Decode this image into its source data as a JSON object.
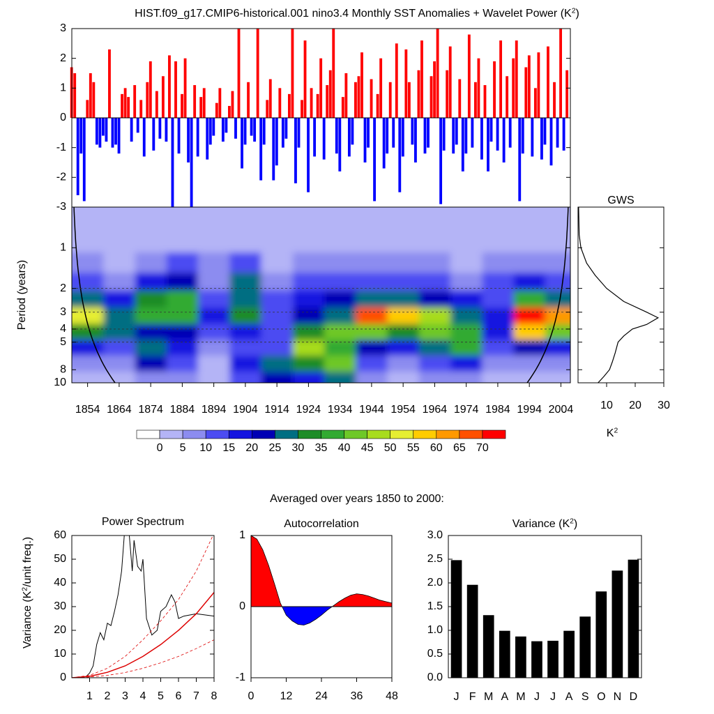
{
  "chart_data": [
    {
      "type": "bar",
      "title": [
        "HIST.f09_g17.CMIP6-historical.001 nino3.4 Monthly SST Anomalies + Wavelet Power (K",
        "2",
        ")"
      ],
      "x": [
        1849,
        1850,
        1851,
        1852,
        1853,
        1854,
        1855,
        1856,
        1857,
        1858,
        1859,
        1860,
        1861,
        1862,
        1863,
        1864,
        1865,
        1866,
        1867,
        1868,
        1869,
        1870,
        1871,
        1872,
        1873,
        1874,
        1875,
        1876,
        1877,
        1878,
        1879,
        1880,
        1881,
        1882,
        1883,
        1884,
        1885,
        1886,
        1887,
        1888,
        1889,
        1890,
        1891,
        1892,
        1893,
        1894,
        1895,
        1896,
        1897,
        1898,
        1899,
        1900,
        1901,
        1902,
        1903,
        1904,
        1905,
        1906,
        1907,
        1908,
        1909,
        1910,
        1911,
        1912,
        1913,
        1914,
        1915,
        1916,
        1917,
        1918,
        1919,
        1920,
        1921,
        1922,
        1923,
        1924,
        1925,
        1926,
        1927,
        1928,
        1929,
        1930,
        1931,
        1932,
        1933,
        1934,
        1935,
        1936,
        1937,
        1938,
        1939,
        1940,
        1941,
        1942,
        1943,
        1944,
        1945,
        1946,
        1947,
        1948,
        1949,
        1950,
        1951,
        1952,
        1953,
        1954,
        1955,
        1956,
        1957,
        1958,
        1959,
        1960,
        1961,
        1962,
        1963,
        1964,
        1965,
        1966,
        1967,
        1968,
        1969,
        1970,
        1971,
        1972,
        1973,
        1974,
        1975,
        1976,
        1977,
        1978,
        1979,
        1980,
        1981,
        1982,
        1983,
        1984,
        1985,
        1986,
        1987,
        1988,
        1989,
        1990,
        1991,
        1992,
        1993,
        1994,
        1995,
        1996,
        1997,
        1998,
        1999,
        2000,
        2001,
        2002,
        2003,
        2004,
        2005,
        2006
      ],
      "values": [
        1.7,
        1.5,
        -2.6,
        -1.2,
        -2.8,
        0.6,
        1.5,
        1.2,
        -0.9,
        -1.0,
        -0.6,
        -0.8,
        2.3,
        -1.0,
        -0.9,
        -1.2,
        0.8,
        1.0,
        0.7,
        -0.8,
        1.1,
        -0.5,
        0.6,
        -1.3,
        1.2,
        1.9,
        -1.1,
        0.9,
        -0.7,
        1.4,
        -0.8,
        2.1,
        -3.0,
        1.9,
        -1.2,
        0.8,
        2.0,
        -1.5,
        -3.0,
        1.1,
        -1.3,
        0.7,
        1.0,
        -1.4,
        -0.9,
        -0.6,
        0.5,
        1.0,
        -0.8,
        -0.5,
        0.4,
        0.9,
        -0.7,
        3.0,
        -1.7,
        -0.9,
        1.2,
        -0.6,
        -0.8,
        3.0,
        -2.1,
        -0.9,
        0.6,
        1.3,
        -2.1,
        -1.6,
        1.0,
        -1.0,
        -0.7,
        0.8,
        3.0,
        -2.2,
        -1.0,
        0.6,
        2.6,
        -2.5,
        1.0,
        -1.3,
        0.8,
        2.0,
        -1.4,
        1.1,
        1.6,
        3.0,
        -1.2,
        -1.8,
        0.7,
        1.5,
        -1.3,
        -0.9,
        1.2,
        1.4,
        2.2,
        -1.5,
        -1.0,
        1.3,
        -2.8,
        0.8,
        2.0,
        -1.7,
        -1.2,
        1.2,
        -1.0,
        2.5,
        -2.5,
        -1.3,
        2.3,
        1.2,
        -0.9,
        -1.5,
        1.6,
        2.6,
        -1.2,
        -1.0,
        1.4,
        1.9,
        3.0,
        -2.9,
        -1.1,
        1.6,
        2.4,
        -1.2,
        -0.9,
        1.3,
        -1.8,
        -1.2,
        2.8,
        -1.0,
        1.2,
        2.0,
        -1.4,
        1.1,
        -1.8,
        -0.8,
        1.9,
        -1.1,
        2.6,
        -1.5,
        1.4,
        -1.0,
        2.0,
        2.6,
        -2.8,
        -1.2,
        1.7,
        2.1,
        -1.3,
        1.0,
        2.2,
        -1.4,
        -0.9,
        2.4,
        -1.6,
        1.2,
        -1.0,
        3.0,
        -1.1,
        1.6
      ],
      "pos_color": "#ff0000",
      "neg_color": "#0000ff",
      "xlim": [
        1849,
        2007
      ],
      "ylim": [
        -3,
        3
      ],
      "yticks": [
        -3,
        -2,
        -1,
        0,
        1,
        2,
        3
      ]
    },
    {
      "type": "heatmap",
      "ylabel": "Period (years)",
      "x": [
        1854,
        1864,
        1874,
        1884,
        1894,
        1904,
        1914,
        1924,
        1934,
        1944,
        1954,
        1964,
        1974,
        1984,
        1994,
        2004
      ],
      "periods": [
        0.6,
        0.9,
        1.3,
        1.8,
        2.4,
        3.2,
        4.2,
        5.5,
        7.2,
        9.5
      ],
      "values": [
        [
          2,
          2,
          2,
          2,
          2,
          2,
          2,
          2,
          2,
          2,
          2,
          2,
          2,
          2,
          2,
          2
        ],
        [
          3,
          3,
          3,
          3,
          3,
          3,
          3,
          3,
          3,
          3,
          3,
          3,
          3,
          3,
          3,
          3
        ],
        [
          8,
          4,
          8,
          12,
          6,
          10,
          4,
          5,
          6,
          6,
          8,
          6,
          4,
          5,
          8,
          6
        ],
        [
          12,
          8,
          15,
          22,
          8,
          25,
          8,
          10,
          12,
          14,
          12,
          12,
          8,
          10,
          18,
          12
        ],
        [
          25,
          15,
          30,
          38,
          12,
          28,
          12,
          18,
          20,
          28,
          25,
          22,
          15,
          14,
          35,
          28
        ],
        [
          50,
          28,
          38,
          35,
          18,
          30,
          12,
          22,
          25,
          68,
          55,
          48,
          28,
          15,
          70,
          60
        ],
        [
          30,
          25,
          22,
          20,
          14,
          16,
          10,
          30,
          40,
          40,
          30,
          42,
          35,
          15,
          58,
          40
        ],
        [
          18,
          14,
          25,
          15,
          8,
          10,
          12,
          45,
          35,
          22,
          15,
          25,
          38,
          10,
          20,
          15
        ],
        [
          8,
          6,
          20,
          12,
          4,
          16,
          25,
          30,
          42,
          12,
          8,
          12,
          15,
          6,
          8,
          8
        ],
        [
          4,
          4,
          8,
          6,
          3,
          10,
          22,
          15,
          25,
          8,
          4,
          6,
          8,
          4,
          4,
          4
        ]
      ],
      "xlim": [
        1849,
        2007
      ],
      "xticks": [
        1854,
        1864,
        1874,
        1884,
        1894,
        1904,
        1914,
        1924,
        1934,
        1944,
        1954,
        1964,
        1974,
        1984,
        1994,
        2004
      ],
      "ylim": [
        0.5,
        10
      ],
      "ylog": true,
      "yticks": [
        1,
        2,
        3,
        4,
        5,
        8,
        10
      ],
      "dashed_periods": [
        2,
        3,
        4,
        5
      ],
      "levels": [
        0,
        5,
        10,
        15,
        20,
        25,
        30,
        35,
        40,
        45,
        50,
        55,
        60,
        65,
        70
      ],
      "colors": [
        "#ffffff",
        "#b4b4f6",
        "#8c8cf0",
        "#4c4cf2",
        "#1414e0",
        "#0000b4",
        "#006e82",
        "#1e8c28",
        "#32aa32",
        "#6ec828",
        "#a8dc1e",
        "#e6ee32",
        "#ffcc00",
        "#ff9900",
        "#ff5000",
        "#ff0000"
      ]
    },
    {
      "type": "line",
      "orientation": "horizontal",
      "title": "GWS",
      "xlabel": [
        "K",
        "2"
      ],
      "periods": [
        0.5,
        0.8,
        1,
        1.3,
        1.6,
        2,
        2.5,
        3,
        3.3,
        3.7,
        4,
        4.5,
        5,
        6,
        7,
        8,
        9,
        10
      ],
      "values": [
        0.2,
        0.4,
        1,
        3,
        6,
        10,
        16,
        24,
        28,
        24,
        19,
        16,
        14,
        13,
        12,
        11,
        9,
        7
      ],
      "color": "#000000",
      "xlim": [
        0,
        30
      ],
      "xticks": [
        10,
        20,
        30
      ],
      "ylim": [
        0.5,
        10
      ],
      "ylog": true,
      "yticks": [
        1,
        2,
        3,
        4,
        5,
        8,
        10
      ]
    },
    {
      "type": "line",
      "suptitle": "Averaged over years 1850 to 2000:",
      "title": "Power Spectrum",
      "ylabel": [
        "Variance (K",
        "2",
        "/unit freq.)"
      ],
      "series": [
        {
          "color": "#000000",
          "dash": false,
          "x": [
            0.2,
            0.8,
            1,
            1.2,
            1.4,
            1.6,
            1.8,
            2,
            2.2,
            2.4,
            2.6,
            2.8,
            3,
            3.2,
            3.4,
            3.5,
            3.7,
            3.9,
            4,
            4.2,
            4.5,
            4.8,
            5,
            5.3,
            5.6,
            5.8,
            6,
            6.3,
            7,
            8
          ],
          "values": [
            0,
            0.5,
            2,
            5,
            14,
            19,
            16,
            23,
            22,
            28,
            35,
            45,
            65,
            63,
            45,
            58,
            47,
            45,
            50,
            25,
            18,
            20,
            28,
            30,
            35,
            32,
            25,
            26,
            27,
            26
          ]
        },
        {
          "color": "#dd0000",
          "dash": false,
          "x": [
            0,
            1,
            2,
            3,
            4,
            5,
            6,
            7,
            8
          ],
          "values": [
            0,
            0.6,
            2.3,
            5,
            9,
            14,
            20,
            27,
            36
          ]
        },
        {
          "color": "#dd0000",
          "dash": true,
          "x": [
            0,
            1,
            2,
            3,
            4,
            5,
            6,
            7,
            8
          ],
          "values": [
            0,
            1,
            4,
            9,
            16,
            24,
            33,
            45,
            61
          ]
        },
        {
          "color": "#dd0000",
          "dash": true,
          "x": [
            0,
            1,
            2,
            3,
            4,
            5,
            6,
            7,
            8
          ],
          "values": [
            0,
            0.3,
            1,
            2.2,
            4,
            6.3,
            9,
            12.3,
            16
          ]
        }
      ],
      "xlim": [
        0,
        8
      ],
      "xticks": [
        1,
        2,
        3,
        4,
        5,
        6,
        7,
        8
      ],
      "ylim": [
        0,
        60
      ],
      "yticks": [
        0,
        10,
        20,
        30,
        40,
        50,
        60
      ]
    },
    {
      "type": "area",
      "title": "Autocorrelation",
      "x": [
        0,
        2,
        4,
        6,
        8,
        10,
        12,
        14,
        16,
        18,
        20,
        22,
        24,
        26,
        28,
        30,
        32,
        34,
        36,
        38,
        40,
        42,
        44,
        46,
        48
      ],
      "values": [
        1,
        0.95,
        0.8,
        0.58,
        0.32,
        0.05,
        -0.12,
        -0.2,
        -0.25,
        -0.26,
        -0.23,
        -0.18,
        -0.12,
        -0.05,
        0.01,
        0.07,
        0.12,
        0.16,
        0.18,
        0.17,
        0.15,
        0.12,
        0.09,
        0.07,
        0.05
      ],
      "pos_color": "#ff0000",
      "neg_color": "#0000ff",
      "xlim": [
        0,
        48
      ],
      "xticks": [
        0,
        12,
        24,
        36,
        48
      ],
      "ylim": [
        -1,
        1
      ],
      "yticks": [
        -1,
        0,
        1
      ]
    },
    {
      "type": "bar",
      "title": [
        "Variance (K",
        "2",
        ")"
      ],
      "categories": [
        "J",
        "F",
        "M",
        "A",
        "M",
        "J",
        "J",
        "A",
        "S",
        "O",
        "N",
        "D"
      ],
      "values": [
        2.48,
        1.96,
        1.32,
        0.99,
        0.87,
        0.77,
        0.78,
        0.99,
        1.29,
        1.82,
        2.26,
        2.49
      ],
      "color": "#000000",
      "ylim": [
        0,
        3
      ],
      "yticks": [
        {
          "value": 0,
          "label": "0.0"
        },
        0.5,
        {
          "value": 1,
          "label": "1.0"
        },
        1.5,
        {
          "value": 2,
          "label": "2.0"
        },
        2.5,
        {
          "value": 3,
          "label": "3.0"
        }
      ]
    }
  ]
}
